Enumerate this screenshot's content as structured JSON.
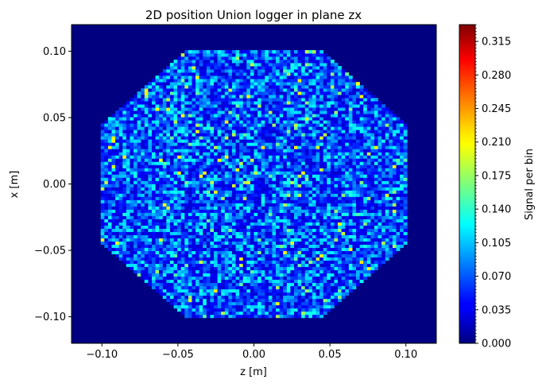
{
  "chart_data": {
    "type": "heatmap",
    "title": "2D position Union logger in plane zx",
    "xlabel": "z [m]",
    "ylabel": "x [m]",
    "xlim": [
      -0.12,
      0.12
    ],
    "ylim": [
      -0.12,
      0.12
    ],
    "x_ticks": [
      -0.1,
      -0.05,
      0.0,
      0.05,
      0.1
    ],
    "x_tick_labels": [
      "−0.10",
      "−0.05",
      "0.00",
      "0.05",
      "0.10"
    ],
    "y_ticks": [
      -0.1,
      -0.05,
      0.0,
      0.05,
      0.1
    ],
    "y_tick_labels": [
      "−0.10",
      "−0.05",
      "0.00",
      "0.05",
      "0.10"
    ],
    "colormap": "jet",
    "background_color": "#000080",
    "colorbar": {
      "label": "Signal per bin",
      "range": [
        0.0,
        0.3325
      ],
      "ticks": [
        0.0,
        0.035,
        0.07,
        0.105,
        0.14,
        0.175,
        0.21,
        0.245,
        0.28,
        0.315
      ],
      "tick_labels": [
        "0.000",
        "0.035",
        "0.070",
        "0.105",
        "0.140",
        "0.175",
        "0.210",
        "0.245",
        "0.280",
        "0.315"
      ]
    },
    "signal_region": {
      "shape": "octagon",
      "vertices_zx": [
        [
          -0.045,
          0.1
        ],
        [
          0.045,
          0.1
        ],
        [
          0.1,
          0.045
        ],
        [
          0.1,
          -0.045
        ],
        [
          0.045,
          -0.1
        ],
        [
          -0.045,
          -0.1
        ],
        [
          -0.1,
          -0.045
        ],
        [
          -0.1,
          0.045
        ]
      ],
      "typical_value": 0.05,
      "max_value": 0.33
    }
  }
}
